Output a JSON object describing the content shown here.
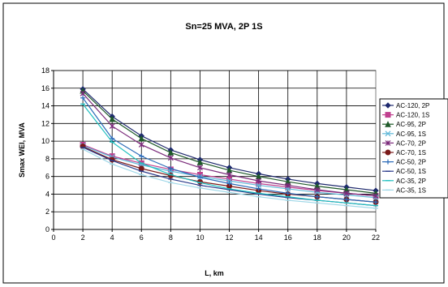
{
  "chart_data": {
    "type": "line",
    "title": "Sn=25 MVA, 2P  1S",
    "xlabel": "L, km",
    "ylabel": "Smax WEI, MVA",
    "xlim": [
      0,
      22
    ],
    "ylim": [
      0,
      18
    ],
    "xticks": [
      0,
      2,
      4,
      6,
      8,
      10,
      12,
      14,
      16,
      18,
      20,
      22
    ],
    "yticks": [
      0,
      2,
      4,
      6,
      8,
      10,
      12,
      14,
      16,
      18
    ],
    "grid": true,
    "legend_position": "right",
    "x": [
      2,
      4,
      6,
      8,
      10,
      12,
      14,
      16,
      18,
      20,
      22
    ],
    "series": [
      {
        "name": "AC-120, 2P",
        "color": "#1f2a6e",
        "marker": "diamond",
        "values": [
          15.9,
          12.8,
          10.6,
          9.0,
          7.9,
          7.0,
          6.3,
          5.7,
          5.2,
          4.8,
          4.4
        ]
      },
      {
        "name": "AC-120, 1S",
        "color": "#c0408f",
        "marker": "square",
        "values": [
          9.6,
          8.3,
          7.5,
          6.8,
          6.2,
          5.7,
          5.2,
          4.8,
          4.4,
          4.1,
          3.8
        ]
      },
      {
        "name": "AC-95, 2P",
        "color": "#1f5a2a",
        "marker": "triangle",
        "values": [
          15.7,
          12.5,
          10.3,
          8.7,
          7.6,
          6.7,
          6.0,
          5.4,
          4.9,
          4.5,
          4.1
        ]
      },
      {
        "name": "AC-95, 1S",
        "color": "#5fb8d8",
        "marker": "x",
        "values": [
          9.5,
          8.2,
          7.3,
          6.6,
          6.0,
          5.5,
          5.0,
          4.6,
          4.2,
          3.9,
          3.6
        ]
      },
      {
        "name": "AC-70, 2P",
        "color": "#7a2a7a",
        "marker": "star",
        "values": [
          15.4,
          11.7,
          9.6,
          8.1,
          7.0,
          6.2,
          5.5,
          5.0,
          4.5,
          4.1,
          3.8
        ]
      },
      {
        "name": "AC-70, 1S",
        "color": "#7a1a1a",
        "marker": "circle",
        "values": [
          9.4,
          7.9,
          6.9,
          6.1,
          5.4,
          4.9,
          4.4,
          4.0,
          3.7,
          3.4,
          3.1
        ]
      },
      {
        "name": "AC-50, 2P",
        "color": "#2a6ab8",
        "marker": "plus",
        "values": [
          14.9,
          10.3,
          8.3,
          6.9,
          5.9,
          5.2,
          4.6,
          4.1,
          3.7,
          3.4,
          3.1
        ]
      },
      {
        "name": "AC-50, 1S",
        "color": "#2a3a8a",
        "marker": "dash",
        "values": [
          9.3,
          7.8,
          6.6,
          5.7,
          5.0,
          4.5,
          4.0,
          3.6,
          3.3,
          3.0,
          2.7
        ]
      },
      {
        "name": "AC-35, 2P",
        "color": "#20c0c0",
        "marker": "dash",
        "values": [
          14.2,
          9.9,
          7.5,
          6.2,
          5.3,
          4.6,
          4.1,
          3.7,
          3.3,
          3.0,
          2.7
        ]
      },
      {
        "name": "AC-35, 1S",
        "color": "#a0d8e8",
        "marker": "dash",
        "values": [
          9.1,
          7.4,
          6.2,
          5.3,
          4.7,
          4.2,
          3.7,
          3.3,
          3.0,
          2.7,
          2.4
        ]
      }
    ]
  }
}
